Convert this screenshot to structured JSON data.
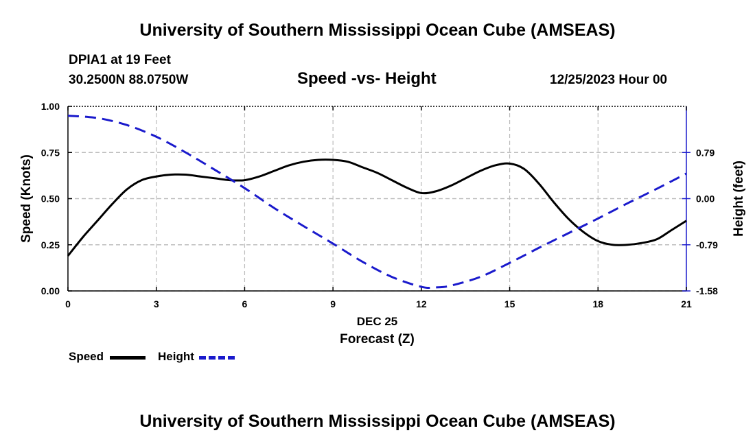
{
  "header": {
    "title_top": "University of Southern Mississippi Ocean Cube (AMSEAS)",
    "station": "DPIA1 at 19 Feet",
    "coords": "30.2500N  88.0750W",
    "plot_title": "Speed -vs- Height",
    "datetime": "12/25/2023 Hour 00"
  },
  "footer": {
    "title_bottom": "University of Southern Mississippi Ocean Cube (AMSEAS)"
  },
  "legend": {
    "speed_label": "Speed",
    "height_label": "Height"
  },
  "colors": {
    "speed": "#000000",
    "height": "#1a1acc",
    "grid": "#bbbbbb"
  },
  "chart_data": {
    "type": "line",
    "title": "Speed -vs- Height",
    "xlabel": "Forecast (Z)",
    "xlabel_date": "DEC 25",
    "ylabel": "Speed (Knots)",
    "y2label": "Height (feet)",
    "xlim": [
      0,
      21
    ],
    "ylim": [
      0,
      1
    ],
    "y2lim": [
      -1.58,
      1.58
    ],
    "x_ticks": [
      0,
      3,
      6,
      9,
      12,
      15,
      18,
      21
    ],
    "x_tick_labels": [
      "0",
      "3",
      "6",
      "9",
      "12",
      "15",
      "18",
      "21"
    ],
    "y_ticks": [
      0,
      0.25,
      0.5,
      0.75,
      1.0
    ],
    "y_tick_labels": [
      "0.00",
      "0.25",
      "0.50",
      "0.75",
      "1.00"
    ],
    "y2_ticks": [
      -1.58,
      -0.79,
      0,
      0.79
    ],
    "y2_tick_labels": [
      "-1.58",
      "-0.79",
      "0.00",
      "0.79"
    ],
    "grid": true,
    "series": [
      {
        "name": "Speed",
        "axis": "left",
        "style": "solid",
        "x": [
          0,
          0.5,
          1,
          1.5,
          2,
          2.5,
          3,
          3.5,
          4,
          4.5,
          5,
          5.5,
          6,
          6.5,
          7,
          7.5,
          8,
          8.5,
          9,
          9.5,
          10,
          10.5,
          11,
          11.5,
          12,
          12.5,
          13,
          13.5,
          14,
          14.5,
          15,
          15.5,
          16,
          16.5,
          17,
          17.5,
          18,
          18.5,
          19,
          19.5,
          20,
          20.5,
          21
        ],
        "values": [
          0.19,
          0.29,
          0.38,
          0.47,
          0.55,
          0.6,
          0.62,
          0.63,
          0.63,
          0.62,
          0.61,
          0.6,
          0.6,
          0.62,
          0.65,
          0.68,
          0.7,
          0.71,
          0.71,
          0.7,
          0.67,
          0.64,
          0.6,
          0.56,
          0.53,
          0.54,
          0.57,
          0.61,
          0.65,
          0.68,
          0.69,
          0.66,
          0.58,
          0.48,
          0.39,
          0.32,
          0.27,
          0.25,
          0.25,
          0.26,
          0.28,
          0.33,
          0.38
        ]
      },
      {
        "name": "Height",
        "axis": "right",
        "style": "dashed",
        "x": [
          0,
          1,
          2,
          3,
          4,
          5,
          6,
          7,
          8,
          9,
          10,
          11,
          12,
          12.5,
          13,
          14,
          15,
          16,
          17,
          18,
          19,
          20,
          21
        ],
        "values": [
          1.42,
          1.38,
          1.26,
          1.06,
          0.79,
          0.49,
          0.18,
          -0.16,
          -0.47,
          -0.77,
          -1.08,
          -1.34,
          -1.51,
          -1.52,
          -1.49,
          -1.34,
          -1.1,
          -0.84,
          -0.59,
          -0.34,
          -0.08,
          0.17,
          0.43
        ]
      }
    ]
  }
}
